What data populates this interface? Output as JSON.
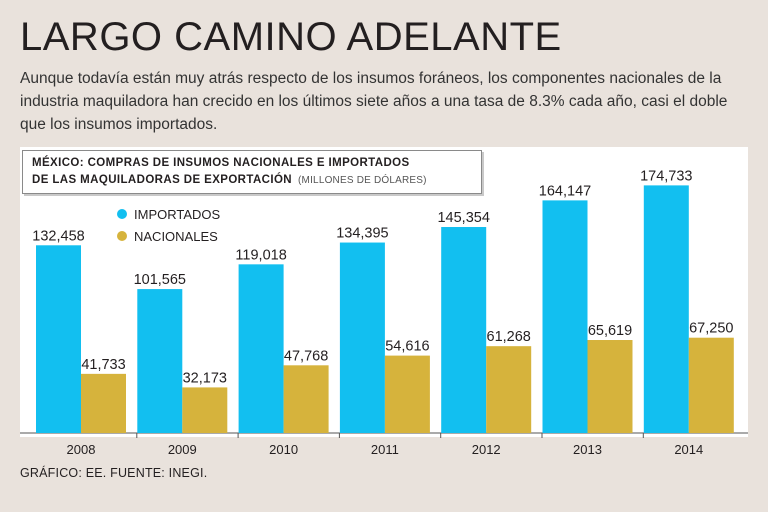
{
  "title": "LARGO CAMINO ADELANTE",
  "subtitle": "Aunque todavía están muy atrás respecto de los insumos foráneos, los componentes nacionales de la industria maquiladora han crecido en los últimos siete años a una tasa de 8.3% cada año, casi el doble que los insumos importados.",
  "footer": "GRÁFICO: EE. FUENTE: INEGI.",
  "colors": {
    "importados": "#12bff0",
    "nacionales": "#d6b33c",
    "background": "#e9e2dc",
    "plot_bg": "#ffffff"
  },
  "chart_data": {
    "type": "bar",
    "title_line1": "MÉXICO: COMPRAS DE INSUMOS NACIONALES E IMPORTADOS",
    "title_line2": "DE LAS MAQUILADORAS DE EXPORTACIÓN",
    "units": "(MILLONES DE DÓLARES)",
    "categories": [
      "2008",
      "2009",
      "2010",
      "2011",
      "2012",
      "2013",
      "2014"
    ],
    "series": [
      {
        "name": "IMPORTADOS",
        "values": [
          132458,
          101565,
          119018,
          134395,
          145354,
          164147,
          174733
        ],
        "labels": [
          "132,458",
          "101,565",
          "119,018",
          "134,395",
          "145,354",
          "164,147",
          "174,733"
        ]
      },
      {
        "name": "NACIONALES",
        "values": [
          41733,
          32173,
          47768,
          54616,
          61268,
          65619,
          67250
        ],
        "labels": [
          "41,733",
          "32,173",
          "47,768",
          "54,616",
          "61,268",
          "65,619",
          "67,250"
        ]
      }
    ],
    "legend_position": "top-left",
    "ylim": [
      0,
      175000
    ],
    "grid": false
  }
}
